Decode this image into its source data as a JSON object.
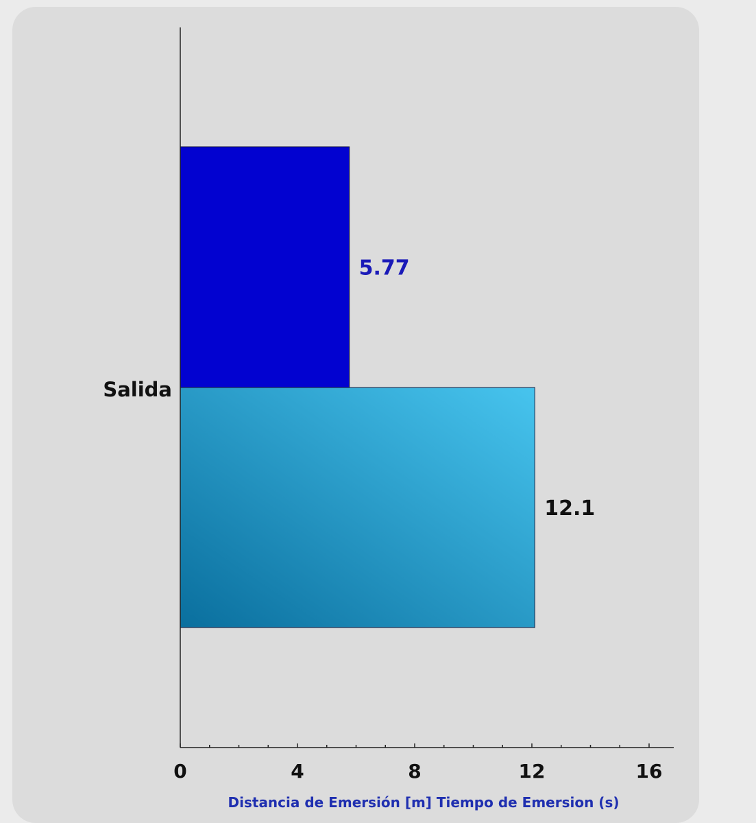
{
  "chart_data": {
    "type": "bar",
    "orientation": "horizontal",
    "categories": [
      "Salida"
    ],
    "series": [
      {
        "values": [
          5.77
        ],
        "color": "#0202d0",
        "label_color": "#1a1ab8"
      },
      {
        "values": [
          12.1
        ],
        "color": "#2a9fd0",
        "gradient_light": "#47c4ee",
        "gradient_dark": "#0a6f9e",
        "label_color": "#111111"
      }
    ],
    "data_labels": [
      "5.77",
      "12.1"
    ],
    "xlabel": "Distancia de Emersión [m] Tiempo de Emersion (s)",
    "xlabel_color": "#1f2fb0",
    "ylabel": "",
    "title": "",
    "xlim": [
      0,
      16
    ],
    "xticks": [
      0,
      4,
      8,
      12,
      16
    ],
    "minor_ticks_per_major": 4,
    "grid": false,
    "legend": "none",
    "background_color": "#dcdcdc"
  }
}
